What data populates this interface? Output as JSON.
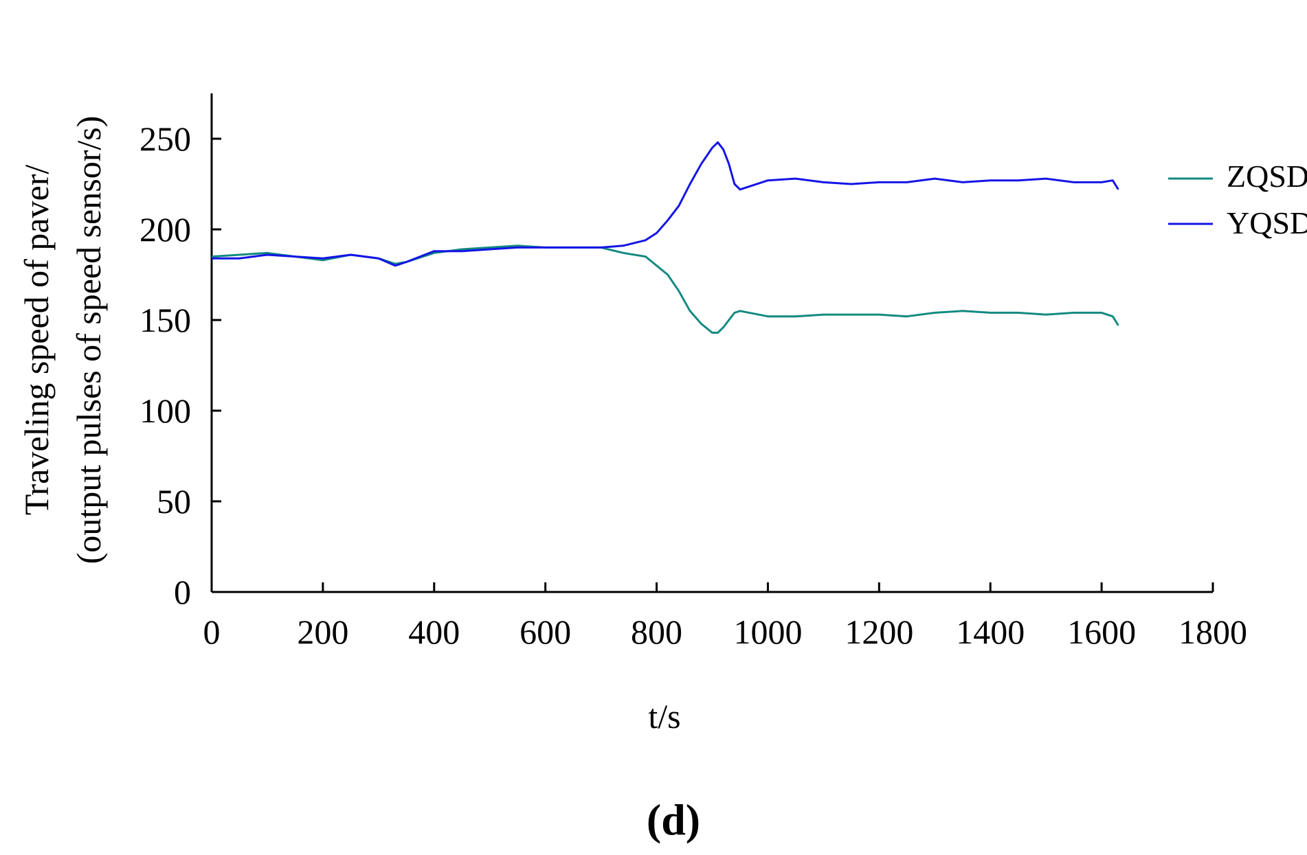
{
  "chart_data": {
    "type": "line",
    "title": "",
    "xlabel": "t/s",
    "ylabel_line1": "Traveling speed of paver/",
    "ylabel_line2": "(output pulses of speed sensor/s)",
    "xlim": [
      0,
      1800
    ],
    "ylim": [
      0,
      275
    ],
    "x_ticks": [
      0,
      200,
      400,
      600,
      800,
      1000,
      1200,
      1400,
      1600,
      1800
    ],
    "x_tick_labels": [
      "0",
      "200",
      "400",
      "600",
      "800",
      "1000",
      "1200",
      "1400",
      "1600",
      "1800"
    ],
    "y_ticks": [
      0,
      50,
      100,
      150,
      200,
      250
    ],
    "y_tick_labels": [
      "0",
      "50",
      "100",
      "150",
      "200",
      "250"
    ],
    "grid": false,
    "legend_position": "right",
    "panel_label": "(d)",
    "series": [
      {
        "name": "ZQSD",
        "color": "#138a80",
        "x": [
          0,
          50,
          100,
          150,
          200,
          250,
          300,
          330,
          350,
          400,
          450,
          500,
          550,
          600,
          650,
          700,
          740,
          780,
          800,
          820,
          840,
          860,
          880,
          900,
          910,
          920,
          930,
          940,
          950,
          1000,
          1050,
          1100,
          1150,
          1200,
          1250,
          1300,
          1350,
          1400,
          1450,
          1500,
          1550,
          1600,
          1620,
          1630
        ],
        "y": [
          185,
          186,
          187,
          185,
          183,
          186,
          184,
          181,
          182,
          187,
          189,
          190,
          191,
          190,
          190,
          190,
          187,
          185,
          180,
          175,
          166,
          155,
          148,
          143,
          143,
          146,
          150,
          154,
          155,
          152,
          152,
          153,
          153,
          153,
          152,
          154,
          155,
          154,
          154,
          153,
          154,
          154,
          152,
          147
        ]
      },
      {
        "name": "YQSD",
        "color": "#1414e6",
        "x": [
          0,
          50,
          100,
          150,
          200,
          250,
          300,
          330,
          350,
          400,
          450,
          500,
          550,
          600,
          650,
          700,
          740,
          780,
          800,
          820,
          840,
          860,
          880,
          900,
          910,
          920,
          930,
          940,
          950,
          1000,
          1050,
          1100,
          1150,
          1200,
          1250,
          1300,
          1350,
          1400,
          1450,
          1500,
          1550,
          1600,
          1620,
          1630
        ],
        "y": [
          184,
          184,
          186,
          185,
          184,
          186,
          184,
          180,
          182,
          188,
          188,
          189,
          190,
          190,
          190,
          190,
          191,
          194,
          198,
          205,
          213,
          225,
          236,
          245,
          248,
          244,
          236,
          225,
          222,
          227,
          228,
          226,
          225,
          226,
          226,
          228,
          226,
          227,
          227,
          228,
          226,
          226,
          227,
          222
        ]
      }
    ]
  }
}
